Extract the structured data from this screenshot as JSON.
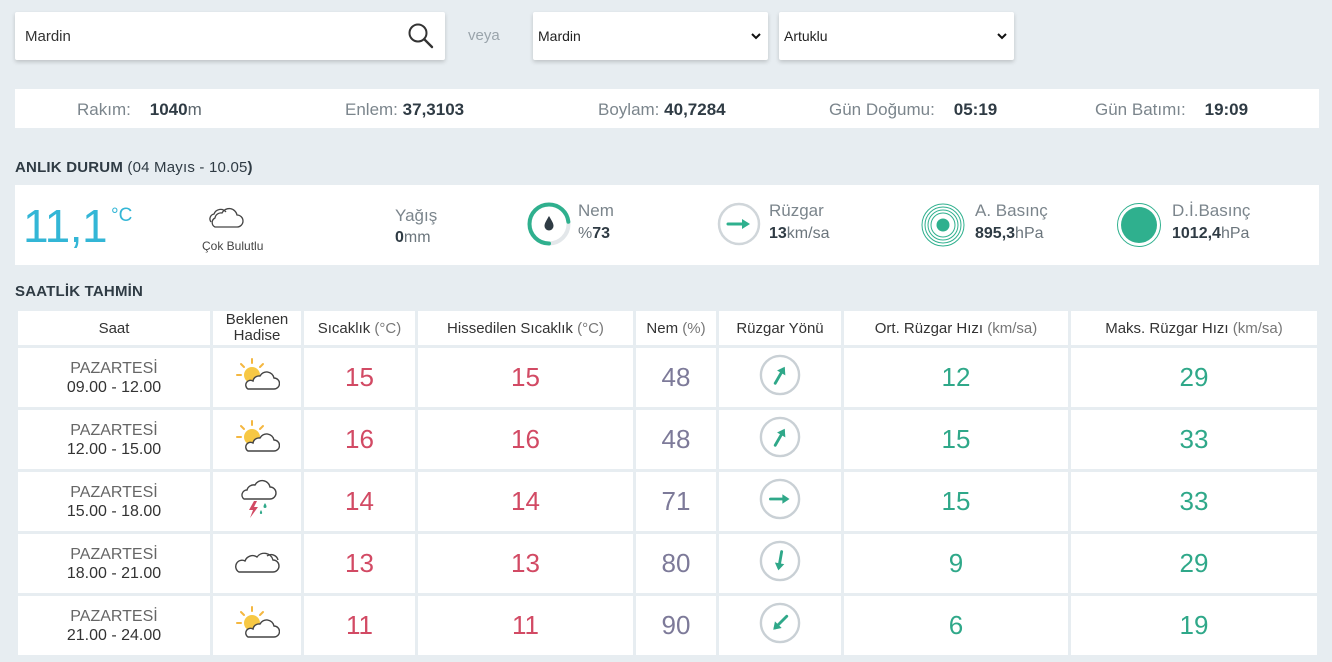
{
  "search": {
    "value": "Mardin"
  },
  "veya_label": "veya",
  "selects": {
    "il": "Mardin",
    "ilce": "Artuklu"
  },
  "info": {
    "rakim_label": "Rakım:",
    "rakim_value": "1040",
    "rakim_unit": "m",
    "enlem_label": "Enlem:",
    "enlem_value": "37,3103",
    "boylam_label": "Boylam:",
    "boylam_value": "40,7284",
    "gundogumu_label": "Gün Doğumu:",
    "gundogumu_value": "05:19",
    "gunbatimi_label": "Gün Batımı:",
    "gunbatimi_value": "19:09"
  },
  "current": {
    "title": "ANLIK DURUM",
    "subtitle_open": " (",
    "date_text": "04 Mayıs - 10.05",
    "subtitle_close": ")",
    "temperature": "11,1",
    "temp_unit": "°C",
    "condition": "Çok Bulutlu",
    "precip_label": "Yağış",
    "precip_value": "0",
    "precip_unit": "mm",
    "humidity_label": "Nem",
    "humidity_prefix": "%",
    "humidity_value": "73",
    "wind_label": "Rüzgar",
    "wind_value": "13",
    "wind_unit": "km/sa",
    "pressure_label": "A. Basınç",
    "pressure_value": "895,3",
    "pressure_unit": "hPa",
    "sea_pressure_label": "D.İ.Basınç",
    "sea_pressure_value": "1012,4",
    "sea_pressure_unit": "hPa",
    "colors": {
      "accent": "#33b6d6",
      "teal": "#2fb08e"
    }
  },
  "forecast": {
    "title": "SAATLİK TAHMİN",
    "headers": {
      "saat": "Saat",
      "hadise_1": "Beklenen",
      "hadise_2": "Hadise",
      "sicaklik": "Sıcaklık",
      "sicaklik_unit": "(°C)",
      "hissedilen": "Hissedilen Sıcaklık",
      "hissedilen_unit": "(°C)",
      "nem": "Nem",
      "nem_unit": "(%)",
      "ruzgar_yonu": "Rüzgar Yönü",
      "ort_ruzgar": "Ort. Rüzgar Hızı",
      "ort_ruzgar_unit": "(km/sa)",
      "maks_ruzgar": "Maks. Rüzgar Hızı",
      "maks_ruzgar_unit": "(km/sa)"
    },
    "rows": [
      {
        "day": "PAZARTESİ",
        "time": "09.00 - 12.00",
        "icon": "partly-sunny-icon",
        "temp": "15",
        "feels": "15",
        "humidity": "48",
        "wind_dir_icon": "arrow-northeast-icon",
        "wind_avg": "12",
        "wind_max": "29"
      },
      {
        "day": "PAZARTESİ",
        "time": "12.00 - 15.00",
        "icon": "partly-sunny-icon",
        "temp": "16",
        "feels": "16",
        "humidity": "48",
        "wind_dir_icon": "arrow-northeast-icon",
        "wind_avg": "15",
        "wind_max": "33"
      },
      {
        "day": "PAZARTESİ",
        "time": "15.00 - 18.00",
        "icon": "thunderstorm-icon",
        "temp": "14",
        "feels": "14",
        "humidity": "71",
        "wind_dir_icon": "arrow-east-icon",
        "wind_avg": "15",
        "wind_max": "33"
      },
      {
        "day": "PAZARTESİ",
        "time": "18.00 - 21.00",
        "icon": "cloudy-icon",
        "temp": "13",
        "feels": "13",
        "humidity": "80",
        "wind_dir_icon": "arrow-south-icon",
        "wind_avg": "9",
        "wind_max": "29"
      },
      {
        "day": "PAZARTESİ",
        "time": "21.00 - 24.00",
        "icon": "partly-sunny-icon",
        "temp": "11",
        "feels": "11",
        "humidity": "90",
        "wind_dir_icon": "arrow-southwest-icon",
        "wind_avg": "6",
        "wind_max": "19"
      }
    ]
  }
}
